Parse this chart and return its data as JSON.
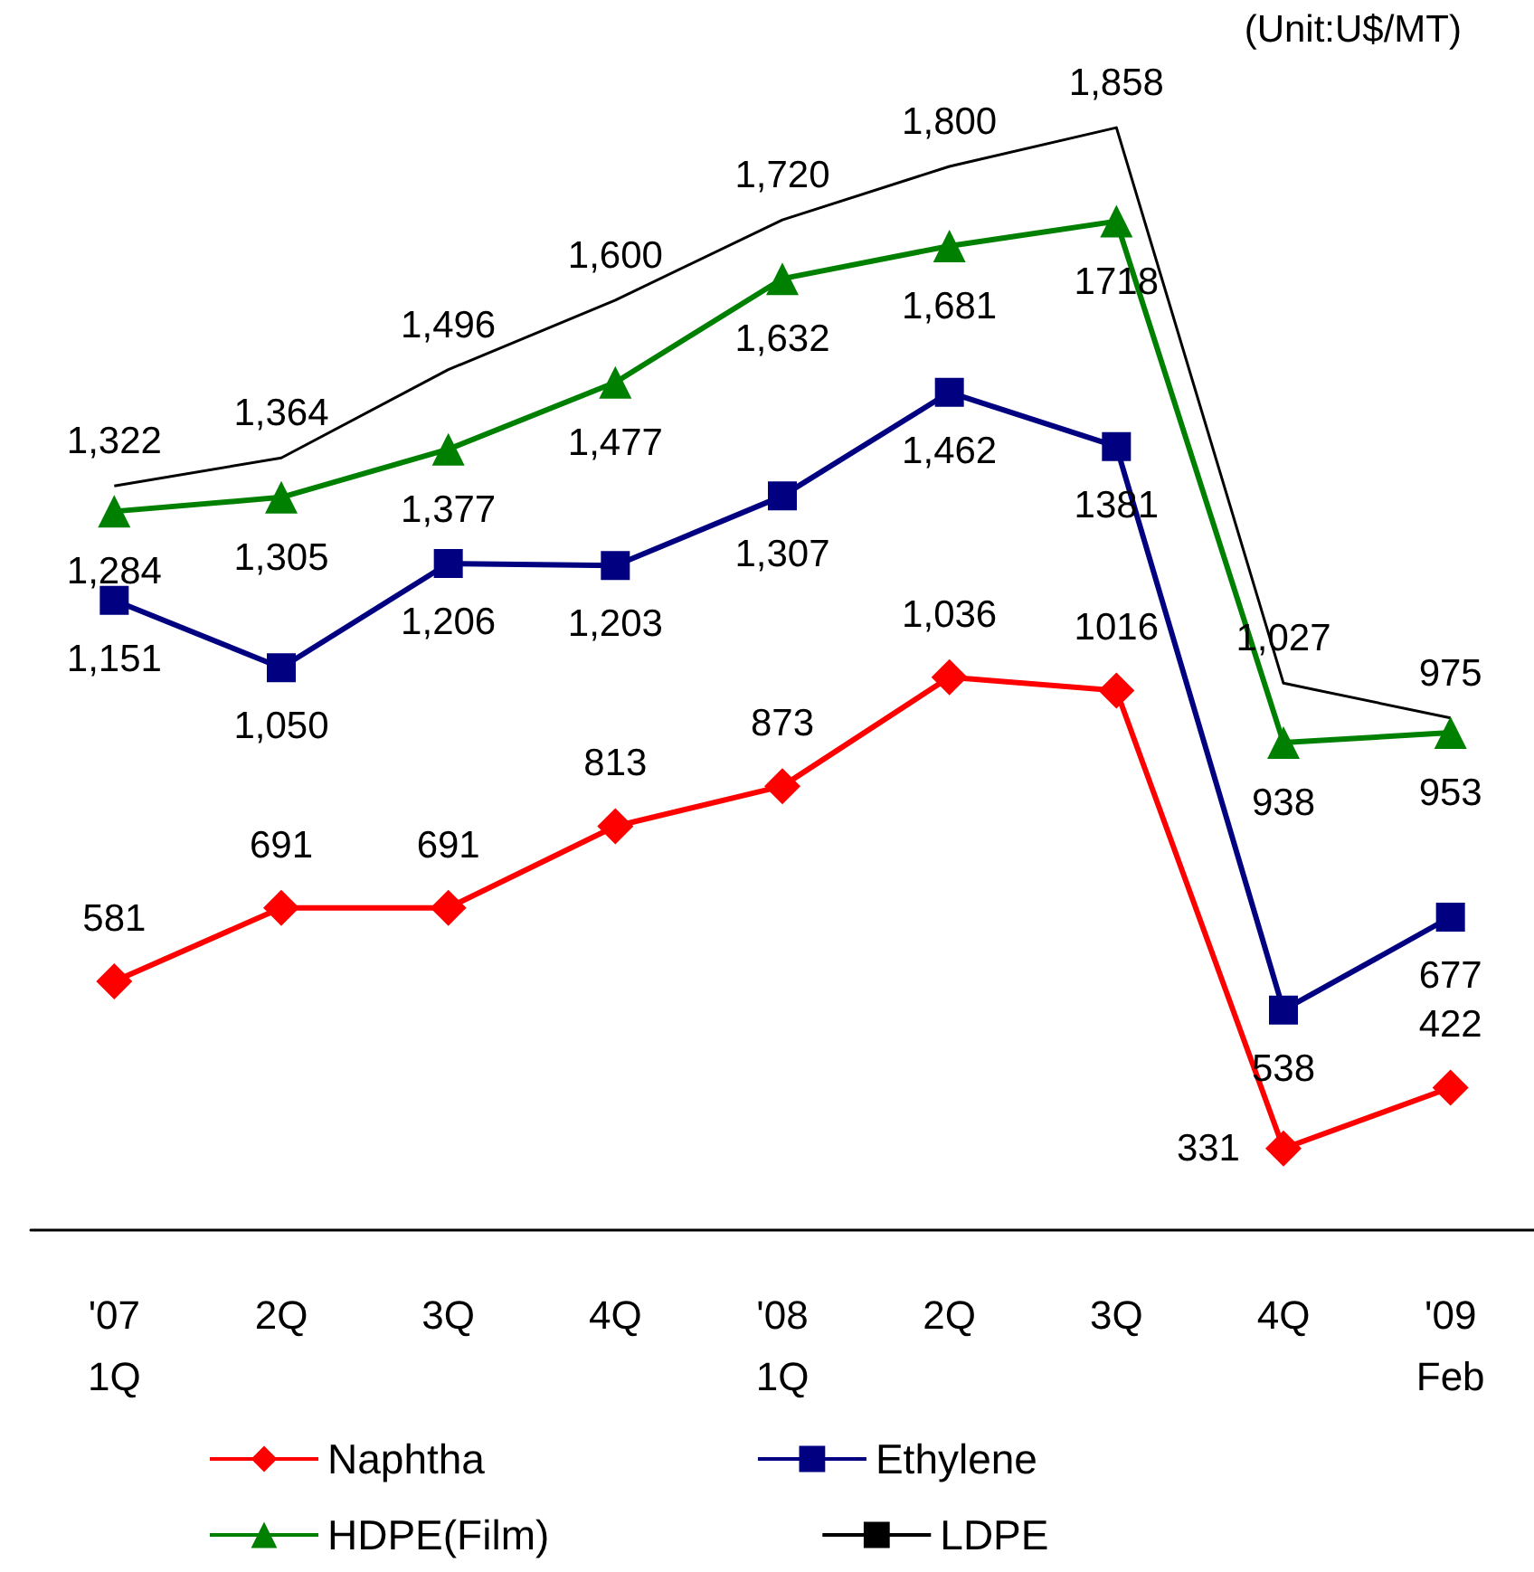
{
  "chart_data": {
    "type": "line",
    "categories": [
      "'07\n1Q",
      "2Q",
      "3Q",
      "4Q",
      "'08\n1Q",
      "2Q",
      "3Q",
      "4Q",
      "'09\nFeb"
    ],
    "series": [
      {
        "name": "Naphtha",
        "color": "#ff0000",
        "marker": "diamond",
        "values": [
          581,
          691,
          691,
          813,
          873,
          1036,
          1016,
          331,
          422
        ],
        "value_labels": [
          "581",
          "691",
          "691",
          "813",
          "873",
          "1,036",
          "1016",
          "331",
          "422"
        ]
      },
      {
        "name": "Ethylene",
        "color": "#000080",
        "marker": "square",
        "values": [
          1151,
          1050,
          1206,
          1203,
          1307,
          1462,
          1381,
          538,
          677
        ],
        "value_labels": [
          "1,151",
          "1,050",
          "1,206",
          "1,203",
          "1,307",
          "1,462",
          "1381",
          "538",
          "677"
        ]
      },
      {
        "name": "HDPE(Film)",
        "color": "#008000",
        "marker": "triangle",
        "values": [
          1284,
          1305,
          1377,
          1477,
          1632,
          1681,
          1718,
          938,
          953
        ],
        "value_labels": [
          "1,284",
          "1,305",
          "1,377",
          "1,477",
          "1,632",
          "1,681",
          "1718",
          "938",
          "953"
        ]
      },
      {
        "name": "LDPE",
        "color": "#000000",
        "marker": "none",
        "values": [
          1322,
          1364,
          1496,
          1600,
          1720,
          1800,
          1858,
          1027,
          975
        ],
        "value_labels": [
          "1,322",
          "1,364",
          "1,496",
          "1,600",
          "1,720",
          "1,800",
          "1,858",
          "1,027",
          "975"
        ]
      }
    ],
    "tick_labels": "x",
    "grid": false,
    "legend": "bottom",
    "annotations": [
      "(Unit:U$/MT)"
    ]
  }
}
